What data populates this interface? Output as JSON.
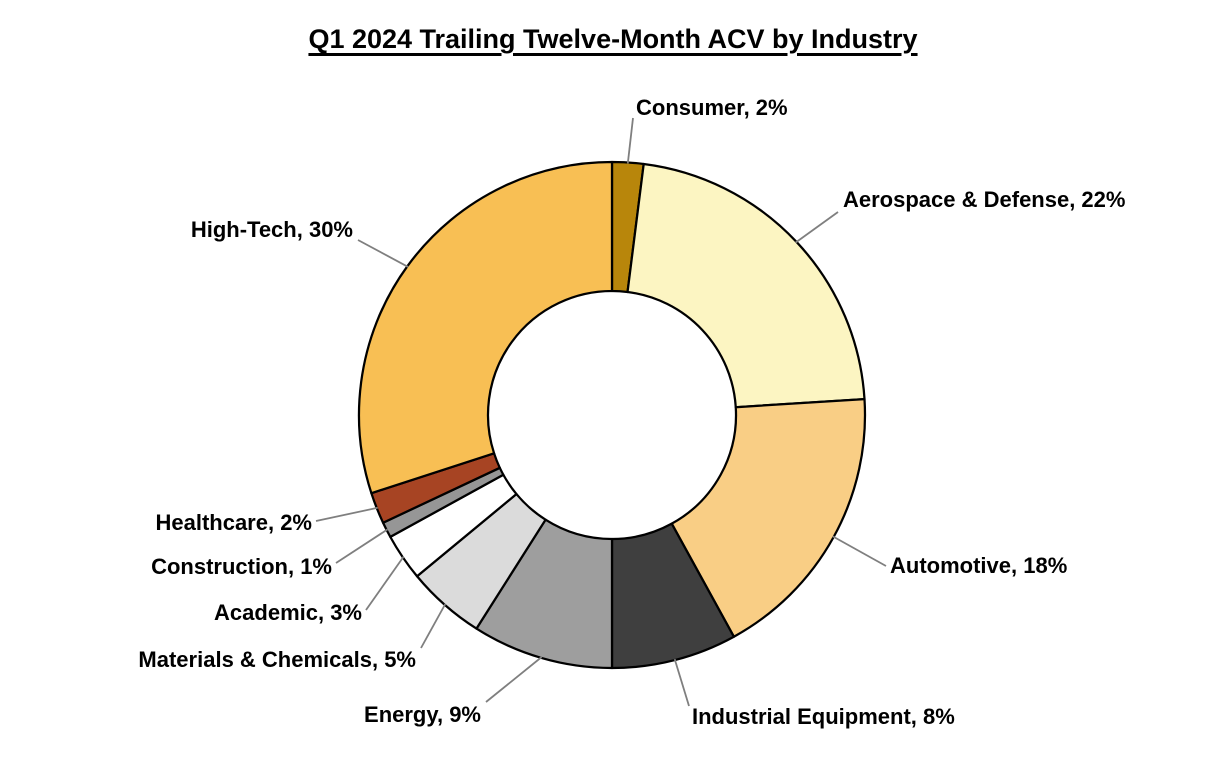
{
  "page": {
    "background_color": "#FFFFFF"
  },
  "chart_data": {
    "type": "pie",
    "subtype": "donut",
    "title": "Q1 2024 Trailing Twelve-Month ACV by Industry",
    "label_format": "{category}, {value}%",
    "legend_position": "none",
    "start_angle_deg": 0,
    "direction": "clockwise",
    "donut_hole_ratio": 0.49,
    "total": 100,
    "categories": [
      "Consumer",
      "Aerospace & Defense",
      "Automotive",
      "Industrial Equipment",
      "Energy",
      "Materials & Chemicals",
      "Academic",
      "Construction",
      "Healthcare",
      "High-Tech"
    ],
    "values": [
      2,
      22,
      18,
      8,
      9,
      5,
      3,
      1,
      2,
      30
    ],
    "slices": [
      {
        "category": "Consumer",
        "value": 2,
        "color": "#B8860B"
      },
      {
        "category": "Aerospace & Defense",
        "value": 22,
        "color": "#FCF5C2"
      },
      {
        "category": "Automotive",
        "value": 18,
        "color": "#F9CE85"
      },
      {
        "category": "Industrial Equipment",
        "value": 8,
        "color": "#3F3F3F"
      },
      {
        "category": "Energy",
        "value": 9,
        "color": "#9E9E9E"
      },
      {
        "category": "Materials & Chemicals",
        "value": 5,
        "color": "#DBDBDB"
      },
      {
        "category": "Academic",
        "value": 3,
        "color": "#FFFFFF"
      },
      {
        "category": "Construction",
        "value": 1,
        "color": "#969696"
      },
      {
        "category": "Healthcare",
        "value": 2,
        "color": "#A74423"
      },
      {
        "category": "High-Tech",
        "value": 30,
        "color": "#F8BF54"
      }
    ],
    "slice_border_color": "#000000",
    "leader_line_color": "#7F7F7F",
    "label_text_color": "#000000",
    "title_text_color": "#000000"
  }
}
